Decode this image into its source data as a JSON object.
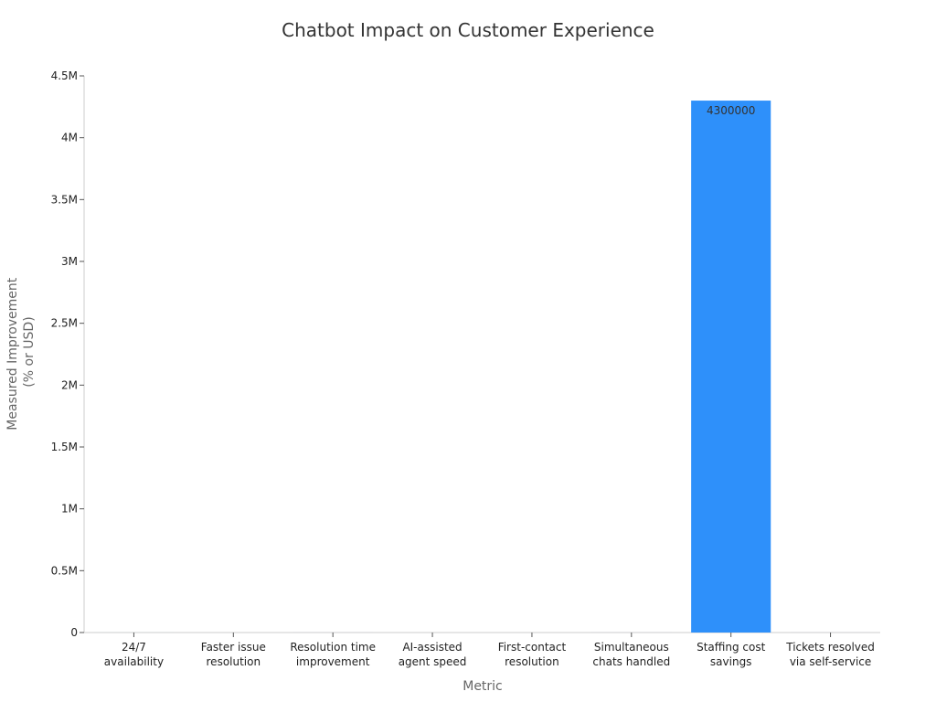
{
  "chart_data": {
    "type": "bar",
    "title": "Chatbot Impact on Customer Experience",
    "xlabel": "Metric",
    "ylabel_lines": [
      "Measured Improvement",
      "(% or USD)"
    ],
    "categories": [
      [
        "24/7",
        "availability"
      ],
      [
        "Faster issue",
        "resolution"
      ],
      [
        "Resolution time",
        "improvement"
      ],
      [
        "AI-assisted",
        "agent speed"
      ],
      [
        "First-contact",
        "resolution"
      ],
      [
        "Simultaneous",
        "chats handled"
      ],
      [
        "Staffing cost",
        "savings"
      ],
      [
        "Tickets resolved",
        "via self-service"
      ]
    ],
    "values": [
      24,
      3,
      52,
      14,
      14,
      90,
      4300000,
      70
    ],
    "data_labels": [
      "",
      "",
      "",
      "",
      "",
      "",
      "4300000",
      ""
    ],
    "ylim": [
      0,
      4500000
    ],
    "yticks": [
      {
        "value": 0,
        "label": "0"
      },
      {
        "value": 500000,
        "label": "0.5M"
      },
      {
        "value": 1000000,
        "label": "1M"
      },
      {
        "value": 1500000,
        "label": "1.5M"
      },
      {
        "value": 2000000,
        "label": "2M"
      },
      {
        "value": 2500000,
        "label": "2.5M"
      },
      {
        "value": 3000000,
        "label": "3M"
      },
      {
        "value": 3500000,
        "label": "3.5M"
      },
      {
        "value": 4000000,
        "label": "4M"
      },
      {
        "value": 4500000,
        "label": "4.5M"
      }
    ],
    "grid": false,
    "legend": "none",
    "bar_color": "#2e90fa",
    "axis_color": "#cccccc"
  }
}
